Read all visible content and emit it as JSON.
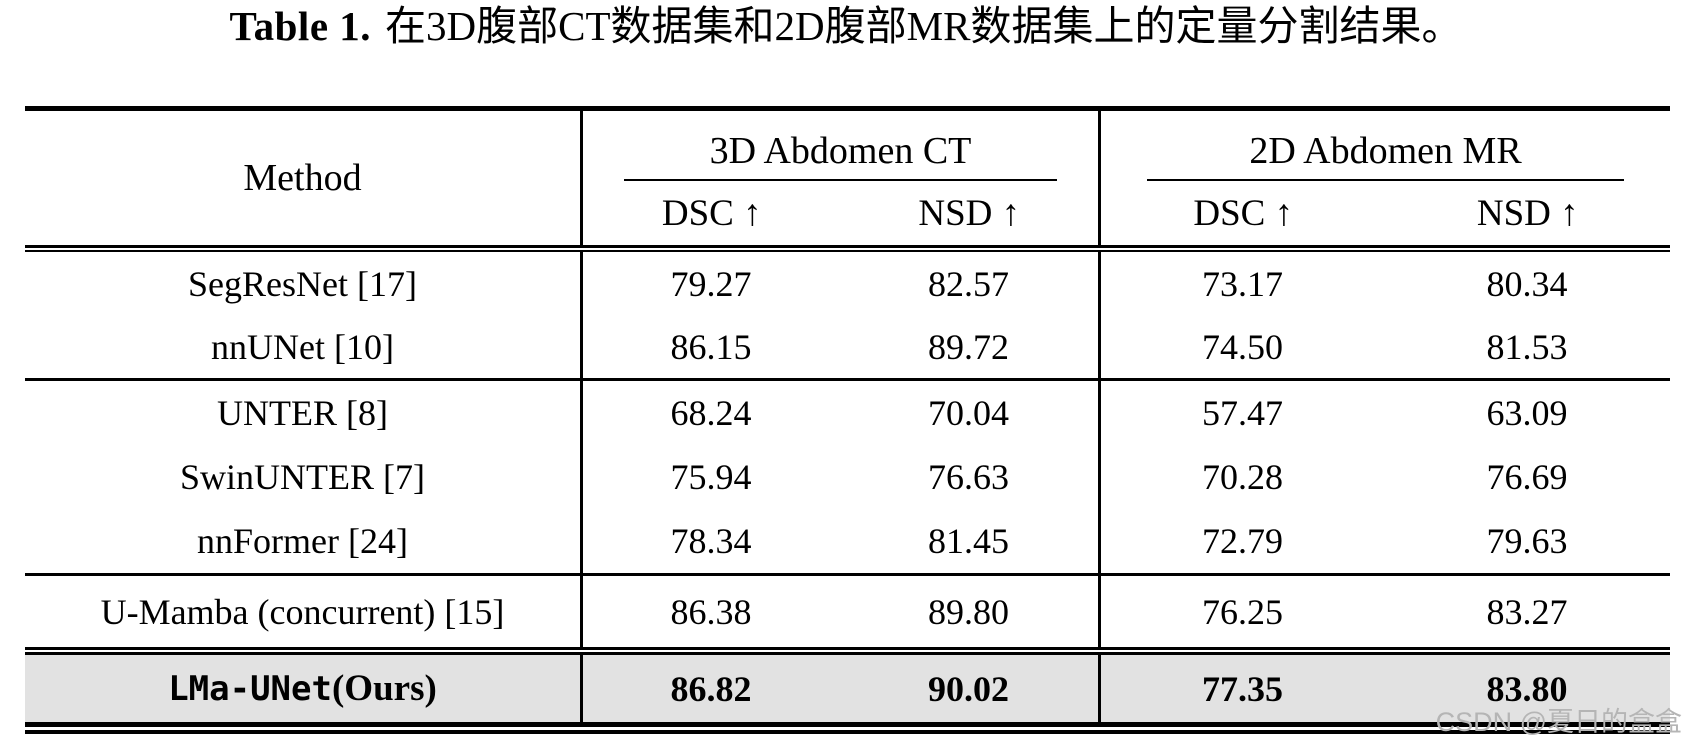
{
  "caption": {
    "label": "Table 1.",
    "text": "在3D腹部CT数据集和2D腹部MR数据集上的定量分割结果。"
  },
  "table": {
    "method_header": "Method",
    "groups": [
      {
        "title": "3D Abdomen CT",
        "subcolumns": [
          "DSC ↑",
          "NSD ↑"
        ]
      },
      {
        "title": "2D Abdomen MR",
        "subcolumns": [
          "DSC ↑",
          "NSD ↑"
        ]
      }
    ],
    "rows": [
      {
        "method": "SegResNet [17]",
        "values": [
          "79.27",
          "82.57",
          "73.17",
          "80.34"
        ]
      },
      {
        "method": "nnUNet [10]",
        "values": [
          "86.15",
          "89.72",
          "74.50",
          "81.53"
        ]
      },
      {
        "method": "UNTER [8]",
        "values": [
          "68.24",
          "70.04",
          "57.47",
          "63.09"
        ]
      },
      {
        "method": "SwinUNTER [7]",
        "values": [
          "75.94",
          "76.63",
          "70.28",
          "76.69"
        ]
      },
      {
        "method": "nnFormer [24]",
        "values": [
          "78.34",
          "81.45",
          "72.79",
          "79.63"
        ]
      },
      {
        "method": "U-Mamba (concurrent) [15]",
        "values": [
          "86.38",
          "89.80",
          "76.25",
          "83.27"
        ]
      },
      {
        "method_mono": "LMa-UNet",
        "method_suffix": "(Ours)",
        "highlighted": true,
        "values": [
          "86.82",
          "90.02",
          "77.35",
          "83.80"
        ]
      }
    ]
  },
  "watermark": "CSDN @夏日的盒盒",
  "colors": {
    "text": "#000000",
    "rule": "#000000",
    "highlight_row_bg": "#e2e2e2",
    "watermark": "#b5b5b5"
  }
}
